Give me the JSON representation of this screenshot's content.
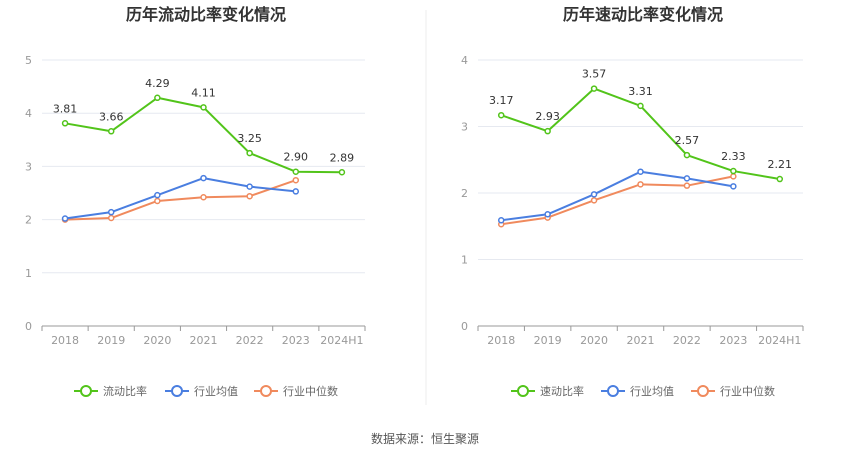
{
  "source": "数据来源：恒生聚源",
  "colors": {
    "primary": "#52c41a",
    "industry_avg": "#4a7ee0",
    "industry_median": "#f08a5d"
  },
  "chart_data": [
    {
      "type": "line",
      "title": "历年流动比率变化情况",
      "categories": [
        "2018",
        "2019",
        "2020",
        "2021",
        "2022",
        "2023",
        "2024H1"
      ],
      "ylim": [
        0,
        5
      ],
      "yticks": [
        "0",
        "1",
        "2",
        "3",
        "4",
        "5"
      ],
      "grid": true,
      "legend_position": "bottom",
      "series": [
        {
          "name": "流动比率",
          "values": [
            3.81,
            3.66,
            4.29,
            4.11,
            3.25,
            2.9,
            2.89
          ],
          "labels": [
            "3.81",
            "3.66",
            "4.29",
            "4.11",
            "3.25",
            "2.90",
            "2.89"
          ]
        },
        {
          "name": "行业均值",
          "values": [
            2.02,
            2.14,
            2.46,
            2.78,
            2.62,
            2.53,
            null
          ]
        },
        {
          "name": "行业中位数",
          "values": [
            2.0,
            2.03,
            2.35,
            2.42,
            2.44,
            2.74,
            null
          ]
        }
      ]
    },
    {
      "type": "line",
      "title": "历年速动比率变化情况",
      "categories": [
        "2018",
        "2019",
        "2020",
        "2021",
        "2022",
        "2023",
        "2024H1"
      ],
      "ylim": [
        0,
        4
      ],
      "yticks": [
        "0",
        "1",
        "2",
        "3",
        "4"
      ],
      "grid": true,
      "legend_position": "bottom",
      "series": [
        {
          "name": "速动比率",
          "values": [
            3.17,
            2.93,
            3.57,
            3.31,
            2.57,
            2.33,
            2.21
          ],
          "labels": [
            "3.17",
            "2.93",
            "3.57",
            "3.31",
            "2.57",
            "2.33",
            "2.21"
          ]
        },
        {
          "name": "行业均值",
          "values": [
            1.59,
            1.68,
            1.98,
            2.32,
            2.22,
            2.1,
            null
          ]
        },
        {
          "name": "行业中位数",
          "values": [
            1.53,
            1.63,
            1.89,
            2.13,
            2.11,
            2.25,
            null
          ]
        }
      ]
    }
  ]
}
